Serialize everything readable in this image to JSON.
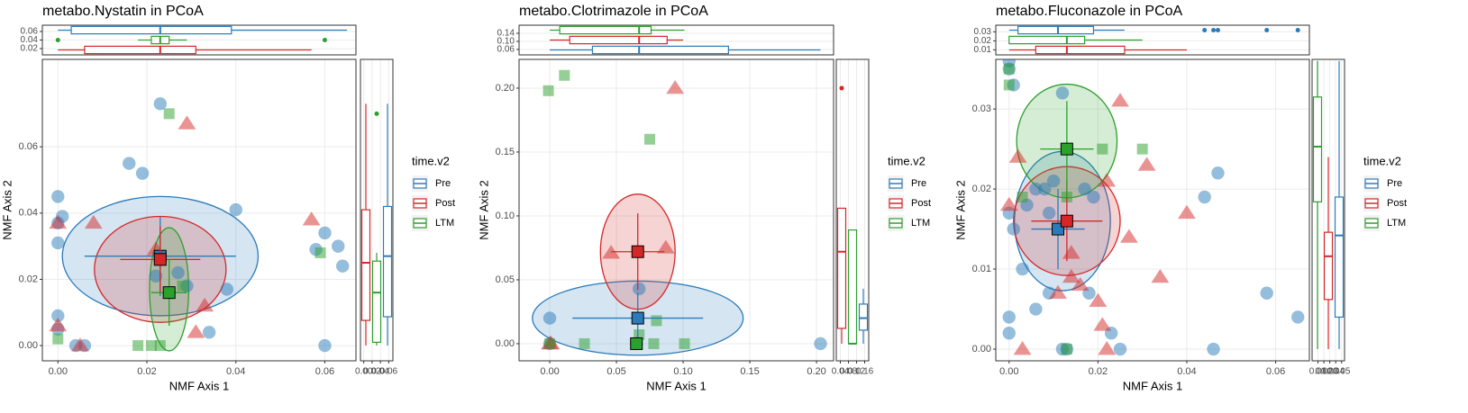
{
  "chart_data": [
    {
      "type": "scatter",
      "title": "metabo.Nystatin in PCoA",
      "xlabel": "NMF Axis 1",
      "ylabel": "NMF Axis 2",
      "legend_title": "time.v2",
      "grid": true,
      "xlim": [
        -0.0035,
        0.067
      ],
      "ylim": [
        -0.0046,
        0.0864
      ],
      "xticks": [
        {
          "value": 0,
          "label": "0.00"
        },
        0.02,
        0.04,
        0.06
      ],
      "yticks": [
        {
          "value": 0,
          "label": "0.00"
        },
        0.02,
        0.04,
        0.06
      ],
      "top_lim": [
        0.0053,
        0.0747
      ],
      "top_ticks": [
        0.02,
        0.04,
        0.06
      ],
      "right_lim": [
        -0.008,
        0.07
      ],
      "right_ticks": [
        {
          "value": 0,
          "label": "0.00"
        },
        0.02,
        0.04,
        0.06
      ],
      "series": [
        {
          "name": "Pre",
          "color": "#2b7bba",
          "shape": "circle",
          "x": [
            0.023,
            0.016,
            0.019,
            0.0,
            0.001,
            0.0,
            0.0,
            0.04,
            0.058,
            0.06,
            0.063,
            0.064,
            0.038,
            0.034,
            0.0,
            0.0,
            0.004,
            0.006,
            0.06,
            0.029,
            0.022,
            0.027
          ],
          "y": [
            0.073,
            0.055,
            0.052,
            0.045,
            0.039,
            0.037,
            0.031,
            0.041,
            0.029,
            0.034,
            0.03,
            0.024,
            0.017,
            0.004,
            0.009,
            0.005,
            0.0,
            0.0,
            0.0,
            0.018,
            0.021,
            0.022
          ],
          "centroid": {
            "x": 0.023,
            "y": 0.027,
            "xerr": 0.017,
            "yerr": 0.012
          },
          "ellipse": {
            "x": 0.023,
            "y": 0.027,
            "rx": 0.022,
            "ry": 0.018
          }
        },
        {
          "name": "Post",
          "color": "#d62728",
          "shape": "triangle",
          "x": [
            0.029,
            0.057,
            0.008,
            0.0,
            0.0,
            0.005,
            0.033,
            0.031,
            0.022
          ],
          "y": [
            0.067,
            0.038,
            0.037,
            0.037,
            0.006,
            0.0,
            0.012,
            0.004,
            0.029
          ],
          "centroid": {
            "x": 0.023,
            "y": 0.026,
            "xerr": 0.009,
            "yerr": 0.01
          },
          "ellipse": {
            "x": 0.023,
            "y": 0.023,
            "rx": 0.0148,
            "ry": 0.016
          }
        },
        {
          "name": "LTM",
          "color": "#2ca02c",
          "shape": "square",
          "x": [
            0.025,
            0.059,
            0.0,
            0.021,
            0.018,
            0.023,
            0.028
          ],
          "y": [
            0.07,
            0.028,
            0.002,
            0.0,
            0.0,
            0.0,
            0.018
          ],
          "centroid": {
            "x": 0.025,
            "y": 0.016,
            "xerr": 0.004,
            "yerr": 0.01
          },
          "ellipse": {
            "x": 0.025,
            "y": 0.017,
            "rx": 0.0044,
            "ry": 0.0186
          }
        }
      ],
      "top_boxes": [
        {
          "color": "#2b7bba",
          "min": 0.0,
          "q1": 0.003,
          "median": 0.023,
          "q3": 0.039,
          "max": 0.065,
          "outliers": []
        },
        {
          "color": "#2ca02c",
          "min": 0.018,
          "q1": 0.021,
          "median": 0.023,
          "q3": 0.025,
          "max": 0.029,
          "outliers": [
            0.0,
            0.06
          ]
        },
        {
          "color": "#d62728",
          "min": 0.0,
          "q1": 0.006,
          "median": 0.023,
          "q3": 0.031,
          "max": 0.057,
          "outliers": []
        }
      ],
      "right_boxes": [
        {
          "color": "#d62728",
          "min": 0.0,
          "q1": 0.0076,
          "median": 0.025,
          "q3": 0.041,
          "max": 0.073,
          "outliers": []
        },
        {
          "color": "#2ca02c",
          "min": 0.0,
          "q1": 0.001,
          "median": 0.016,
          "q3": 0.0255,
          "max": 0.028,
          "outliers": [
            0.07
          ]
        },
        {
          "color": "#2b7bba",
          "min": 0.0,
          "q1": 0.0087,
          "median": 0.027,
          "q3": 0.042,
          "max": 0.073,
          "outliers": []
        }
      ]
    },
    {
      "type": "scatter",
      "title": "metabo.Clotrimazole in PCoA",
      "xlabel": "NMF Axis 1",
      "ylabel": "NMF Axis 2",
      "legend_title": "time.v2",
      "grid": true,
      "xlim": [
        -0.023,
        0.2128
      ],
      "ylim": [
        -0.0134,
        0.2225
      ],
      "xticks": [
        {
          "value": 0,
          "label": "0.00"
        },
        0.05,
        {
          "value": 0.1,
          "label": "0.10"
        },
        0.15,
        {
          "value": 0.2,
          "label": "0.20"
        }
      ],
      "yticks": [
        {
          "value": 0,
          "label": "0.00"
        },
        0.05,
        {
          "value": 0.1,
          "label": "0.10"
        },
        0.15,
        {
          "value": 0.2,
          "label": "0.20"
        }
      ],
      "top_lim": [
        0.033,
        0.18
      ],
      "top_ticks": [
        0.06,
        {
          "value": 0.1,
          "label": "0.10"
        },
        0.14
      ],
      "right_lim": [
        0.02,
        0.18
      ],
      "right_ticks": [
        0.04,
        0.08,
        0.12,
        0.16
      ],
      "series": [
        {
          "name": "Pre",
          "color": "#2b7bba",
          "shape": "circle",
          "x": [
            0.0,
            0.067,
            0.203,
            0.0,
            0.065
          ],
          "y": [
            0.02,
            0.043,
            0.0,
            0.0,
            0.0
          ],
          "centroid": {
            "x": 0.066,
            "y": 0.02,
            "xerr": 0.049,
            "yerr": 0.02
          },
          "ellipse": {
            "x": 0.066,
            "y": 0.02,
            "rx": 0.079,
            "ry": 0.029
          }
        },
        {
          "name": "Post",
          "color": "#d62728",
          "shape": "triangle",
          "x": [
            0.094,
            0.046,
            0.087,
            0.0,
            0.001
          ],
          "y": [
            0.2,
            0.071,
            0.075,
            0.0,
            0.0
          ],
          "centroid": {
            "x": 0.066,
            "y": 0.072,
            "xerr": 0.02,
            "yerr": 0.03
          },
          "ellipse": {
            "x": 0.066,
            "y": 0.072,
            "rx": 0.028,
            "ry": 0.045
          }
        },
        {
          "name": "LTM",
          "color": "#2ca02c",
          "shape": "square",
          "x": [
            -0.001,
            0.011,
            0.075,
            0.0,
            0.026,
            0.078,
            0.101,
            0.067,
            0.08
          ],
          "y": [
            0.198,
            0.21,
            0.16,
            0.0,
            0.0,
            0.0,
            0.0,
            0.007,
            0.018
          ],
          "centroid": {
            "x": 0.065,
            "y": 0.0,
            "xerr": 0.002,
            "yerr": 0.005
          }
        }
      ],
      "top_boxes": [
        {
          "color": "#2ca02c",
          "min": 0.0,
          "q1": 0.0075,
          "median": 0.067,
          "q3": 0.076,
          "max": 0.101,
          "outliers": []
        },
        {
          "color": "#d62728",
          "min": 0.0,
          "q1": 0.015,
          "median": 0.067,
          "q3": 0.088,
          "max": 0.1,
          "outliers": []
        },
        {
          "color": "#2b7bba",
          "min": 0.0,
          "q1": 0.032,
          "median": 0.067,
          "q3": 0.134,
          "max": 0.203,
          "outliers": []
        }
      ],
      "right_boxes": [
        {
          "color": "#d62728",
          "min": 0.0,
          "q1": 0.012,
          "median": 0.072,
          "q3": 0.106,
          "max": 0.106,
          "outliers": [
            0.2
          ]
        },
        {
          "color": "#2ca02c",
          "min": 0.0,
          "q1": 0.0,
          "median": 0.0,
          "q3": 0.089,
          "max": 0.089,
          "outliers": []
        },
        {
          "color": "#2b7bba",
          "min": 0.0,
          "q1": 0.0106,
          "median": 0.02,
          "q3": 0.031,
          "max": 0.043,
          "outliers": []
        }
      ]
    },
    {
      "type": "scatter",
      "title": "metabo.Fluconazole in PCoA",
      "xlabel": "NMF Axis 1",
      "ylabel": "NMF Axis 2",
      "legend_title": "time.v2",
      "grid": true,
      "xlim": [
        -0.003,
        0.0676
      ],
      "ylim": [
        -0.00146,
        0.0362
      ],
      "xticks": [
        {
          "value": 0,
          "label": "0.00"
        },
        0.02,
        0.04,
        0.06
      ],
      "yticks": [
        {
          "value": 0,
          "label": "0.00"
        },
        0.01,
        0.02,
        0.03
      ],
      "top_lim": [
        0.0044,
        0.0374
      ],
      "top_ticks": [
        0.01,
        0.02,
        0.03
      ],
      "right_lim": [
        0.0,
        0.055
      ],
      "right_ticks": [
        0.01,
        0.02,
        0.03,
        0.04,
        0.05
      ],
      "series": [
        {
          "name": "Pre",
          "color": "#2b7bba",
          "shape": "circle",
          "x": [
            0.0,
            0.0,
            0.001,
            0.012,
            0.0,
            0.001,
            0.004,
            0.003,
            0.006,
            0.008,
            0.01,
            0.009,
            0.017,
            0.019,
            0.018,
            0.0,
            0.0,
            0.006,
            0.009,
            0.012,
            0.013,
            0.023,
            0.025,
            0.044,
            0.047,
            0.046,
            0.058,
            0.065
          ],
          "y": [
            0.036,
            0.035,
            0.033,
            0.032,
            0.017,
            0.015,
            0.018,
            0.01,
            0.02,
            0.02,
            0.021,
            0.017,
            0.02,
            0.019,
            0.007,
            0.004,
            0.002,
            0.005,
            0.007,
            0.0,
            0.0,
            0.002,
            0.0,
            0.019,
            0.022,
            0.0,
            0.007,
            0.004
          ],
          "centroid": {
            "x": 0.011,
            "y": 0.015,
            "xerr": 0.006,
            "yerr": 0.005
          },
          "ellipse": {
            "x": 0.012,
            "y": 0.016,
            "rx": 0.0108,
            "ry": 0.0087
          }
        },
        {
          "name": "Post",
          "color": "#d62728",
          "shape": "triangle",
          "x": [
            0.025,
            0.031,
            0.022,
            0.002,
            0.0,
            0.04,
            0.027,
            0.034,
            0.02,
            0.021,
            0.011,
            0.016,
            0.003,
            0.022,
            0.014,
            0.014
          ],
          "y": [
            0.031,
            0.023,
            0.021,
            0.024,
            0.018,
            0.017,
            0.014,
            0.009,
            0.006,
            0.003,
            0.007,
            0.008,
            0.0,
            0.0,
            0.009,
            0.012
          ],
          "centroid": {
            "x": 0.013,
            "y": 0.016,
            "xerr": 0.008,
            "yerr": 0.005
          },
          "ellipse": {
            "x": 0.013,
            "y": 0.016,
            "rx": 0.012,
            "ry": 0.0068
          }
        },
        {
          "name": "LTM",
          "color": "#2ca02c",
          "shape": "square",
          "x": [
            0.0,
            0.0,
            0.021,
            0.03,
            0.013,
            0.003,
            0.013
          ],
          "y": [
            0.035,
            0.033,
            0.025,
            0.025,
            0.019,
            0.019,
            0.0
          ],
          "centroid": {
            "x": 0.013,
            "y": 0.025,
            "xerr": 0.006,
            "yerr": 0.006
          },
          "ellipse": {
            "x": 0.013,
            "y": 0.026,
            "rx": 0.0113,
            "ry": 0.0071
          }
        }
      ],
      "top_boxes": [
        {
          "color": "#2b7bba",
          "min": 0.0,
          "q1": 0.002,
          "median": 0.011,
          "q3": 0.019,
          "max": 0.026,
          "outliers": [
            0.044,
            0.046,
            0.047,
            0.058,
            0.065
          ]
        },
        {
          "color": "#2ca02c",
          "min": 0.0,
          "q1": 0.0,
          "median": 0.013,
          "q3": 0.017,
          "max": 0.03,
          "outliers": []
        },
        {
          "color": "#d62728",
          "min": 0.0,
          "q1": 0.006,
          "median": 0.013,
          "q3": 0.026,
          "max": 0.04,
          "outliers": []
        }
      ],
      "right_boxes": [
        {
          "color": "#2ca02c",
          "min": 0.0,
          "q1": 0.0184,
          "median": 0.0253,
          "q3": 0.0315,
          "max": 0.036,
          "outliers": []
        },
        {
          "color": "#d62728",
          "min": 0.0,
          "q1": 0.0062,
          "median": 0.0116,
          "q3": 0.0146,
          "max": 0.024,
          "outliers": []
        },
        {
          "color": "#2b7bba",
          "min": 0.0,
          "q1": 0.004,
          "median": 0.0142,
          "q3": 0.019,
          "max": 0.036,
          "outliers": []
        }
      ]
    }
  ]
}
